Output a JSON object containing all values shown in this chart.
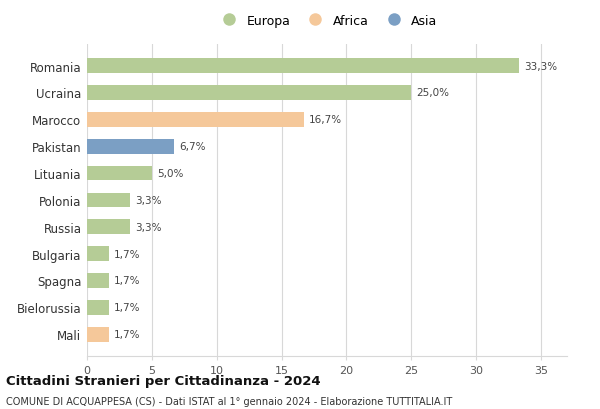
{
  "categories": [
    "Romania",
    "Ucraina",
    "Marocco",
    "Pakistan",
    "Lituania",
    "Polonia",
    "Russia",
    "Bulgaria",
    "Spagna",
    "Bielorussia",
    "Mali"
  ],
  "values": [
    33.3,
    25.0,
    16.7,
    6.7,
    5.0,
    3.3,
    3.3,
    1.7,
    1.7,
    1.7,
    1.7
  ],
  "labels": [
    "33,3%",
    "25,0%",
    "16,7%",
    "6,7%",
    "5,0%",
    "3,3%",
    "3,3%",
    "1,7%",
    "1,7%",
    "1,7%",
    "1,7%"
  ],
  "colors": [
    "#b5cc96",
    "#b5cc96",
    "#f5c89a",
    "#7b9fc4",
    "#b5cc96",
    "#b5cc96",
    "#b5cc96",
    "#b5cc96",
    "#b5cc96",
    "#b5cc96",
    "#f5c89a"
  ],
  "legend_labels": [
    "Europa",
    "Africa",
    "Asia"
  ],
  "legend_colors": [
    "#b5cc96",
    "#f5c89a",
    "#7b9fc4"
  ],
  "xlim": [
    0,
    37
  ],
  "xticks": [
    0,
    5,
    10,
    15,
    20,
    25,
    30,
    35
  ],
  "title": "Cittadini Stranieri per Cittadinanza - 2024",
  "subtitle": "COMUNE DI ACQUAPPESA (CS) - Dati ISTAT al 1° gennaio 2024 - Elaborazione TUTTITALIA.IT",
  "background_color": "#ffffff",
  "grid_color": "#d8d8d8",
  "bar_height": 0.55
}
